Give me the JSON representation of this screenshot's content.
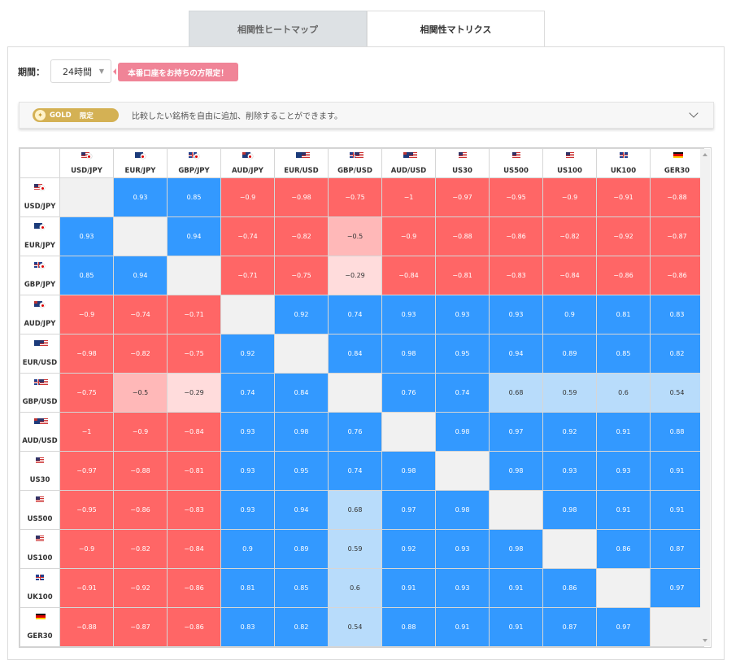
{
  "tabs": [
    {
      "label": "相関性ヒートマップ",
      "active": false
    },
    {
      "label": "相関性マトリクス",
      "active": true
    }
  ],
  "period": {
    "label": "期間：",
    "value": "24時間"
  },
  "limited_badge": "本番口座をお持ちの方限定！",
  "notice": {
    "gold_label": "GOLD",
    "gold_sub": "限定",
    "text": "比較したい銘柄を自由に追加、削除することができます。"
  },
  "colors": {
    "strong_positive": "#3399ff",
    "strong_negative": "#ff6666",
    "light_positive": "#b8dcfb",
    "light_negative": "#ffb8b8",
    "diagonal": "#f1f1f1"
  },
  "matrix": {
    "symbols": [
      {
        "label": "USD/JPY",
        "flag": "us-jp",
        "sub": ""
      },
      {
        "label": "EUR/JPY",
        "flag": "eu-jp",
        "sub": ""
      },
      {
        "label": "GBP/JPY",
        "flag": "gb-jp",
        "sub": ""
      },
      {
        "label": "AUD/JPY",
        "flag": "au-jp",
        "sub": ""
      },
      {
        "label": "EUR/USD",
        "flag": "eu-us",
        "sub": ""
      },
      {
        "label": "GBP/USD",
        "flag": "gb-us",
        "sub": ""
      },
      {
        "label": "AUD/USD",
        "flag": "au-us",
        "sub": ""
      },
      {
        "label": "US30",
        "flag": "us",
        "sub": "USD"
      },
      {
        "label": "US500",
        "flag": "us",
        "sub": "USD"
      },
      {
        "label": "US100",
        "flag": "us",
        "sub": "USD"
      },
      {
        "label": "UK100",
        "flag": "gb",
        "sub": "GBP"
      },
      {
        "label": "GER30",
        "flag": "de",
        "sub": "EUR"
      }
    ],
    "values": [
      [
        null,
        "0.93",
        "0.85",
        "−0.9",
        "−0.98",
        "−0.75",
        "−1",
        "−0.97",
        "−0.95",
        "−0.9",
        "−0.91",
        "−0.88"
      ],
      [
        "0.93",
        null,
        "0.94",
        "−0.74",
        "−0.82",
        "−0.5",
        "−0.9",
        "−0.88",
        "−0.86",
        "−0.82",
        "−0.92",
        "−0.87"
      ],
      [
        "0.85",
        "0.94",
        null,
        "−0.71",
        "−0.75",
        "−0.29",
        "−0.84",
        "−0.81",
        "−0.83",
        "−0.84",
        "−0.86",
        "−0.86"
      ],
      [
        "−0.9",
        "−0.74",
        "−0.71",
        null,
        "0.92",
        "0.74",
        "0.93",
        "0.93",
        "0.93",
        "0.9",
        "0.81",
        "0.83"
      ],
      [
        "−0.98",
        "−0.82",
        "−0.75",
        "0.92",
        null,
        "0.84",
        "0.98",
        "0.95",
        "0.94",
        "0.89",
        "0.85",
        "0.82"
      ],
      [
        "−0.75",
        "−0.5",
        "−0.29",
        "0.74",
        "0.84",
        null,
        "0.76",
        "0.74",
        "0.68",
        "0.59",
        "0.6",
        "0.54"
      ],
      [
        "−1",
        "−0.9",
        "−0.84",
        "0.93",
        "0.98",
        "0.76",
        null,
        "0.98",
        "0.97",
        "0.92",
        "0.91",
        "0.88"
      ],
      [
        "−0.97",
        "−0.88",
        "−0.81",
        "0.93",
        "0.95",
        "0.74",
        "0.98",
        null,
        "0.98",
        "0.93",
        "0.93",
        "0.91"
      ],
      [
        "−0.95",
        "−0.86",
        "−0.83",
        "0.93",
        "0.94",
        "0.68",
        "0.97",
        "0.98",
        null,
        "0.98",
        "0.91",
        "0.91"
      ],
      [
        "−0.9",
        "−0.82",
        "−0.84",
        "0.9",
        "0.89",
        "0.59",
        "0.92",
        "0.93",
        "0.98",
        null,
        "0.86",
        "0.87"
      ],
      [
        "−0.91",
        "−0.92",
        "−0.86",
        "0.81",
        "0.85",
        "0.6",
        "0.91",
        "0.93",
        "0.91",
        "0.86",
        null,
        "0.97"
      ],
      [
        "−0.88",
        "−0.87",
        "−0.86",
        "0.83",
        "0.82",
        "0.54",
        "0.88",
        "0.91",
        "0.91",
        "0.87",
        "0.97",
        null
      ]
    ]
  }
}
